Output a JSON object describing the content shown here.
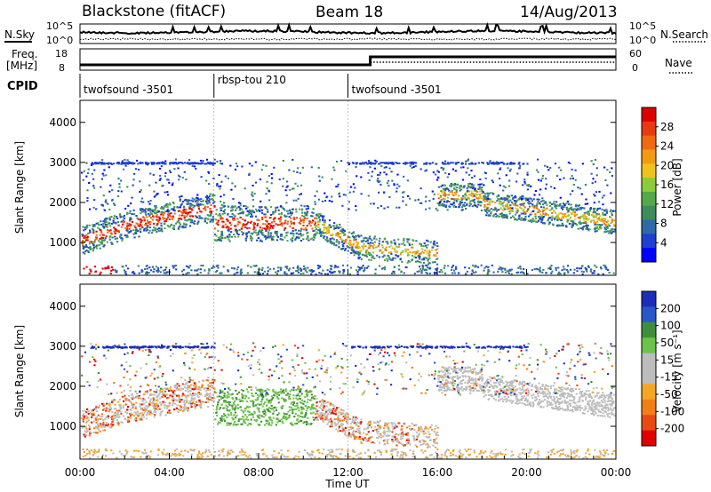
{
  "header": {
    "station": "Blackstone (fitACF)",
    "beam": "Beam 18",
    "date": "14/Aug/2013"
  },
  "noise_panel": {
    "left_label": "N.Sky",
    "right_label": "N.Search",
    "left_ticks": [
      "10^5",
      "10^0"
    ],
    "right_ticks": [
      "10^5",
      "10^0"
    ]
  },
  "freq_panel": {
    "left_label_line1": "Freq.",
    "left_label_line2": "[MHz]",
    "right_label": "Nave",
    "left_ticks": [
      "18",
      "8"
    ],
    "right_ticks": [
      "60",
      "0"
    ]
  },
  "cpid_panel": {
    "label": "CPID",
    "segments": [
      {
        "start": 0,
        "end": 6,
        "name": "twofsound -3501"
      },
      {
        "start": 6,
        "end": 12,
        "name": "rbsp-tou 210"
      },
      {
        "start": 12,
        "end": 24,
        "name": "twofsound -3501"
      }
    ]
  },
  "chart_data": [
    {
      "type": "heatmap",
      "title": "",
      "ylabel": "Slant Range [km]",
      "xlabel": "",
      "xlim": [
        0,
        24
      ],
      "ylim": [
        180,
        4550
      ],
      "yticks": [
        1000,
        2000,
        3000,
        4000
      ],
      "colorbar": {
        "label": "Power [dB]",
        "ticks": [
          4,
          8,
          12,
          16,
          20,
          24,
          28
        ],
        "colors": [
          "#0000ff",
          "#1f3fd0",
          "#2f6aa8",
          "#3c8c5e",
          "#56a94a",
          "#8ccc3a",
          "#f0c21c",
          "#f39a14",
          "#ef6a12",
          "#e83a10",
          "#dd0000"
        ]
      }
    },
    {
      "type": "heatmap",
      "title": "",
      "ylabel": "Slant Range [km]",
      "xlabel": "Time UT",
      "xlim": [
        0,
        24
      ],
      "ylim": [
        180,
        4550
      ],
      "yticks": [
        1000,
        2000,
        3000,
        4000
      ],
      "xticks": [
        "00:00",
        "04:00",
        "08:00",
        "12:00",
        "16:00",
        "20:00",
        "00:00"
      ],
      "colorbar": {
        "label": "Velocity [m s⁻¹]",
        "ticks": [
          "200",
          "100",
          "50",
          "15",
          "-15",
          "-50",
          "-100",
          "-200"
        ],
        "colors": [
          "#1c2dba",
          "#2a57c8",
          "#3f8f3a",
          "#6cc24a",
          "#bdbdbd",
          "#bdbdbd",
          "#f5a623",
          "#f07f18",
          "#e84b12",
          "#e00000"
        ]
      }
    }
  ]
}
